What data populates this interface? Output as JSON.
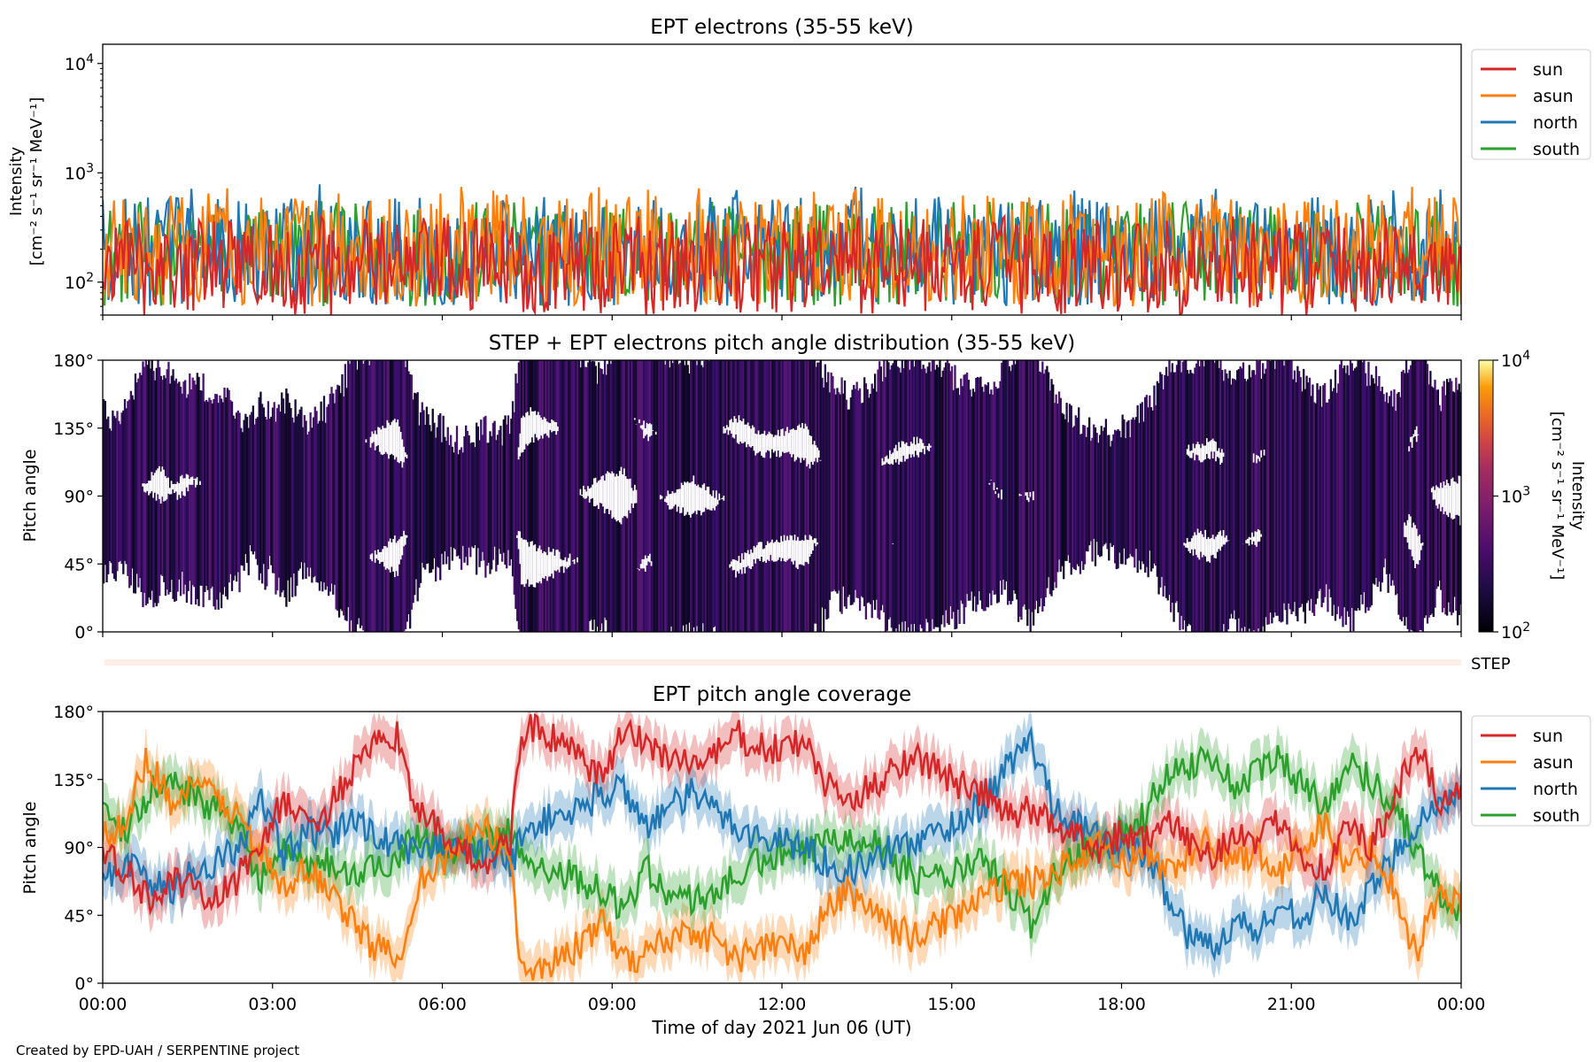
{
  "figure": {
    "credit": "Created by EPD-UAH / SERPENTINE project",
    "xlabel": "Time of day 2021 Jun 06 (UT)",
    "x_ticks": [
      "00:00",
      "03:00",
      "06:00",
      "09:00",
      "12:00",
      "15:00",
      "18:00",
      "21:00",
      "00:00"
    ]
  },
  "colors": {
    "sun": "#d62728",
    "asun": "#ff7f0e",
    "north": "#1f77b4",
    "south": "#2ca02c"
  },
  "chart_data": [
    {
      "type": "line",
      "title": "EPT electrons (35-55 keV)",
      "ylabel_line1": "Intensity",
      "ylabel_line2": "[cm⁻² s⁻¹ sr⁻¹ MeV⁻¹]",
      "y_scale": "log",
      "ylim": [
        50,
        15000
      ],
      "y_ticks": [
        {
          "base": "10",
          "exp": "2",
          "value": 100
        },
        {
          "base": "10",
          "exp": "3",
          "value": 1000
        },
        {
          "base": "10",
          "exp": "4",
          "value": 10000
        }
      ],
      "x_range_hours": [
        0,
        24
      ],
      "legend": {
        "position": "outside-right",
        "entries": [
          "sun",
          "asun",
          "north",
          "south"
        ]
      },
      "series": [
        {
          "name": "south",
          "typical_range": [
            60,
            550
          ],
          "draw_order": 1
        },
        {
          "name": "north",
          "typical_range": [
            60,
            600
          ],
          "peak": 800,
          "draw_order": 2
        },
        {
          "name": "asun",
          "typical_range": [
            60,
            650
          ],
          "peak": 750,
          "draw_order": 3
        },
        {
          "name": "sun",
          "typical_range": [
            50,
            400
          ],
          "draw_order": 4
        }
      ]
    },
    {
      "type": "heatmap",
      "title": "STEP + EPT electrons pitch angle distribution (35-55 keV)",
      "ylabel": "Pitch angle",
      "y_ticks": [
        "0°",
        "45°",
        "90°",
        "135°",
        "180°"
      ],
      "ylim": [
        0,
        180
      ],
      "x_range_hours": [
        0,
        24
      ],
      "colorbar": {
        "label_line1": "Intensity",
        "label_line2": "[cm⁻² s⁻¹ sr⁻¹ MeV⁻¹]",
        "scale": "log",
        "range": [
          100,
          10000
        ],
        "ticks": [
          {
            "base": "10",
            "exp": "2"
          },
          {
            "base": "10",
            "exp": "3"
          },
          {
            "base": "10",
            "exp": "4"
          }
        ],
        "colormap": "inferno"
      },
      "step_label": "STEP"
    },
    {
      "type": "line",
      "title": "EPT pitch angle coverage",
      "ylabel": "Pitch angle",
      "y_ticks": [
        "0°",
        "45°",
        "90°",
        "135°",
        "180°"
      ],
      "ylim": [
        0,
        180
      ],
      "x_range_hours": [
        0,
        24
      ],
      "legend": {
        "position": "outside-right",
        "entries": [
          "sun",
          "asun",
          "north",
          "south"
        ]
      },
      "series": [
        {
          "name": "sun",
          "x": [
            0,
            0.4,
            0.8,
            1.2,
            1.6,
            2.0,
            2.4,
            2.8,
            3.2,
            3.6,
            4.0,
            4.4,
            4.8,
            5.2,
            5.6,
            6.0,
            6.4,
            6.8,
            7.2,
            7.4,
            7.6,
            8.0,
            8.4,
            8.8,
            9.2,
            9.6,
            10.0,
            10.4,
            10.8,
            11.2,
            11.6,
            12.0,
            12.4,
            12.8,
            13.2,
            13.6,
            14.0,
            14.4,
            14.8,
            15.2,
            15.6,
            16.0,
            16.4,
            16.8,
            17.2,
            17.6,
            18.0,
            18.4,
            18.8,
            19.2,
            19.6,
            20.0,
            20.4,
            20.8,
            21.2,
            21.6,
            22.0,
            22.4,
            22.8,
            23.2,
            23.6,
            24.0
          ],
          "y": [
            85,
            75,
            55,
            70,
            60,
            55,
            70,
            95,
            120,
            105,
            115,
            140,
            155,
            165,
            110,
            100,
            85,
            80,
            95,
            165,
            170,
            160,
            150,
            135,
            165,
            160,
            150,
            145,
            150,
            165,
            155,
            155,
            160,
            130,
            120,
            130,
            145,
            150,
            140,
            130,
            125,
            110,
            115,
            105,
            100,
            90,
            100,
            95,
            105,
            95,
            85,
            100,
            90,
            110,
            85,
            75,
            105,
            90,
            115,
            160,
            120,
            130
          ]
        },
        {
          "name": "asun",
          "x": [
            0,
            0.4,
            0.8,
            1.2,
            1.6,
            2.0,
            2.4,
            2.8,
            3.2,
            3.6,
            4.0,
            4.4,
            4.8,
            5.2,
            5.6,
            6.0,
            6.4,
            6.8,
            7.2,
            7.4,
            7.6,
            8.0,
            8.4,
            8.8,
            9.2,
            9.6,
            10.0,
            10.4,
            10.8,
            11.2,
            11.6,
            12.0,
            12.4,
            12.8,
            13.2,
            13.6,
            14.0,
            14.4,
            14.8,
            15.2,
            15.6,
            16.0,
            16.4,
            16.8,
            17.2,
            17.6,
            18.0,
            18.4,
            18.8,
            19.2,
            19.6,
            20.0,
            20.4,
            20.8,
            21.2,
            21.6,
            22.0,
            22.4,
            22.8,
            23.2,
            23.6,
            24.0
          ],
          "y": [
            95,
            110,
            150,
            120,
            130,
            125,
            110,
            85,
            60,
            75,
            65,
            40,
            25,
            15,
            70,
            80,
            95,
            100,
            85,
            10,
            8,
            15,
            25,
            40,
            15,
            20,
            30,
            35,
            30,
            15,
            25,
            25,
            20,
            50,
            60,
            50,
            35,
            30,
            40,
            50,
            55,
            70,
            65,
            75,
            80,
            90,
            80,
            85,
            75,
            85,
            95,
            80,
            90,
            70,
            95,
            105,
            75,
            90,
            65,
            20,
            60,
            50
          ]
        },
        {
          "name": "north",
          "x": [
            0,
            0.4,
            0.8,
            1.2,
            1.6,
            2.0,
            2.4,
            2.8,
            3.2,
            3.6,
            4.0,
            4.4,
            4.8,
            5.2,
            5.6,
            6.0,
            6.4,
            6.8,
            7.2,
            7.4,
            7.6,
            8.0,
            8.4,
            8.8,
            9.2,
            9.6,
            10.0,
            10.4,
            10.8,
            11.2,
            11.6,
            12.0,
            12.4,
            12.8,
            13.2,
            13.6,
            14.0,
            14.4,
            14.8,
            15.2,
            15.6,
            16.0,
            16.4,
            16.8,
            17.2,
            17.6,
            18.0,
            18.4,
            18.8,
            19.2,
            19.6,
            20.0,
            20.4,
            20.8,
            21.2,
            21.6,
            22.0,
            22.4,
            22.8,
            23.2,
            23.6,
            24.0
          ],
          "y": [
            70,
            80,
            70,
            60,
            75,
            80,
            90,
            120,
            85,
            100,
            95,
            110,
            100,
            90,
            85,
            95,
            90,
            85,
            80,
            95,
            105,
            110,
            115,
            125,
            130,
            105,
            115,
            125,
            115,
            105,
            95,
            95,
            90,
            80,
            75,
            80,
            90,
            95,
            100,
            110,
            120,
            145,
            160,
            120,
            105,
            95,
            90,
            85,
            60,
            30,
            25,
            40,
            35,
            50,
            45,
            60,
            40,
            60,
            85,
            105,
            120,
            125
          ]
        },
        {
          "name": "south",
          "x": [
            0,
            0.4,
            0.8,
            1.2,
            1.6,
            2.0,
            2.4,
            2.8,
            3.2,
            3.6,
            4.0,
            4.4,
            4.8,
            5.2,
            5.6,
            6.0,
            6.4,
            6.8,
            7.2,
            7.4,
            7.6,
            8.0,
            8.4,
            8.8,
            9.2,
            9.6,
            10.0,
            10.4,
            10.8,
            11.2,
            11.6,
            12.0,
            12.4,
            12.8,
            13.2,
            13.6,
            14.0,
            14.4,
            14.8,
            15.2,
            15.6,
            16.0,
            16.4,
            16.8,
            17.2,
            17.6,
            18.0,
            18.4,
            18.8,
            19.2,
            19.6,
            20.0,
            20.4,
            20.8,
            21.2,
            21.6,
            22.0,
            22.4,
            22.8,
            23.2,
            23.6,
            24.0
          ],
          "y": [
            110,
            100,
            125,
            135,
            125,
            115,
            100,
            70,
            85,
            75,
            80,
            70,
            75,
            85,
            100,
            90,
            85,
            95,
            100,
            85,
            80,
            75,
            70,
            60,
            50,
            75,
            60,
            55,
            60,
            70,
            80,
            85,
            85,
            95,
            100,
            95,
            80,
            70,
            70,
            75,
            80,
            60,
            40,
            70,
            85,
            95,
            100,
            110,
            140,
            145,
            150,
            130,
            140,
            150,
            130,
            120,
            145,
            135,
            120,
            90,
            60,
            45
          ]
        }
      ]
    }
  ]
}
